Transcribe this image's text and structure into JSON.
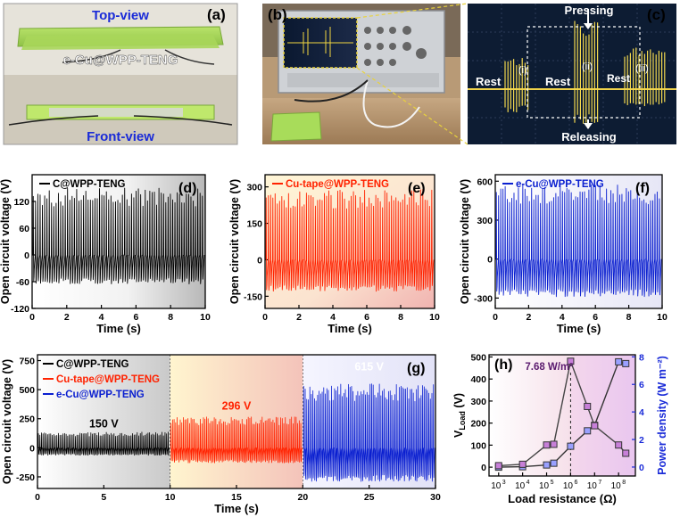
{
  "figure": {
    "panel_a": {
      "letter": "(a)",
      "top_view": "Top-view",
      "device": "e-Cu@WPP-TENG",
      "front_view": "Front-view"
    },
    "panel_b": {
      "letter": "(b)"
    },
    "panel_c": {
      "letter": "(c)",
      "pressing": "Pressing",
      "releasing": "Releasing",
      "rest1": "Rest",
      "rest2": "Rest",
      "rest3": "Rest",
      "i": "(i)",
      "ii": "(ii)",
      "iii": "(iii)"
    }
  },
  "chart_data": [
    {
      "id": "d",
      "panel_label": "(d)",
      "type": "line",
      "title": "",
      "legend": "C@WPP-TENG",
      "color": "#000000",
      "xlabel": "Time (s)",
      "ylabel": "Open circuit voltage (V)",
      "xlim": [
        0,
        10
      ],
      "ylim": [
        -120,
        180
      ],
      "xticks": [
        "0",
        "2",
        "4",
        "6",
        "8",
        "10"
      ],
      "yticks": [
        "-120",
        "-60",
        "0",
        "60",
        "120"
      ],
      "signal": {
        "peak_approx": 150,
        "trough_approx": -65,
        "peaks_count": 75
      }
    },
    {
      "id": "e",
      "panel_label": "(e)",
      "type": "line",
      "title": "",
      "legend": "Cu-tape@WPP-TENG",
      "color": "#ff2200",
      "xlabel": "Time (s)",
      "ylabel": "Open circuit voltage (V)",
      "xlim": [
        0,
        10
      ],
      "ylim": [
        -200,
        350
      ],
      "xticks": [
        "0",
        "2",
        "4",
        "6",
        "8",
        "10"
      ],
      "yticks": [
        "-150",
        "0",
        "150",
        "300"
      ],
      "signal": {
        "peak_approx": 290,
        "trough_approx": -130,
        "peaks_count": 75
      }
    },
    {
      "id": "f",
      "panel_label": "(f)",
      "type": "line",
      "title": "",
      "legend": "e-Cu@WPP-TENG",
      "color": "#0a1fd0",
      "xlabel": "Time (s)",
      "ylabel": "Open circuit voltage (V)",
      "xlim": [
        0,
        10
      ],
      "ylim": [
        -380,
        650
      ],
      "xticks": [
        "0",
        "2",
        "4",
        "6",
        "8",
        "10"
      ],
      "yticks": [
        "-300",
        "0",
        "300",
        "600"
      ],
      "signal": {
        "peak_approx": 580,
        "trough_approx": -290,
        "peaks_count": 75
      }
    },
    {
      "id": "g",
      "panel_label": "(g)",
      "type": "line",
      "title": "",
      "xlabel": "Time (s)",
      "ylabel": "Open circuit voltage (V)",
      "xlim": [
        0,
        30
      ],
      "ylim": [
        -350,
        800
      ],
      "xticks": [
        "0",
        "5",
        "10",
        "15",
        "20",
        "25",
        "30"
      ],
      "yticks": [
        "-250",
        "0",
        "250",
        "500",
        "750"
      ],
      "series": [
        {
          "name": "C@WPP-TENG",
          "color": "#000000",
          "x_range": [
            0,
            10
          ],
          "peak": 150,
          "trough": -65,
          "annotation": "150 V"
        },
        {
          "name": "Cu-tape@WPP-TENG",
          "color": "#ff2200",
          "x_range": [
            10,
            20
          ],
          "peak": 296,
          "trough": -130,
          "annotation": "296 V"
        },
        {
          "name": "e-Cu@WPP-TENG",
          "color": "#0a1fd0",
          "x_range": [
            20,
            30
          ],
          "peak": 615,
          "trough": -290,
          "annotation": "615 V"
        }
      ]
    },
    {
      "id": "h",
      "panel_label": "(h)",
      "type": "line",
      "title": "",
      "xlabel": "Load resistance (Ω)",
      "ylabel": "V_Load (V)",
      "ylabel_main": "V",
      "ylabel_sub": "Load",
      "ylabel_unit": " (V)",
      "y2label": "Power density (W m⁻²)",
      "xscale": "log",
      "xlim_exp": [
        2.6,
        8.7
      ],
      "ylim": [
        -40,
        510
      ],
      "y2lim": [
        -0.65,
        8.15
      ],
      "xticks": [
        {
          "base": "10",
          "exp": "3",
          "v": 3
        },
        {
          "base": "10",
          "exp": "4",
          "v": 4
        },
        {
          "base": "10",
          "exp": "5",
          "v": 5
        },
        {
          "base": "10",
          "exp": "6",
          "v": 6
        },
        {
          "base": "10",
          "exp": "7",
          "v": 7
        },
        {
          "base": "10",
          "exp": "8",
          "v": 8
        }
      ],
      "yticks": [
        "0",
        "100",
        "200",
        "300",
        "400",
        "500"
      ],
      "y2ticks": [
        "0",
        "2",
        "4",
        "6",
        "8"
      ],
      "annotation": "7.68 W/m²",
      "series": [
        {
          "name": "V_Load",
          "color": "#333333",
          "axis": "left",
          "x_exp": [
            3,
            4,
            5,
            5.3,
            6,
            6.7,
            7,
            8,
            8.3
          ],
          "y": [
            0,
            2,
            10,
            18,
            95,
            165,
            190,
            478,
            470
          ]
        },
        {
          "name": "Power density",
          "color": "#444444",
          "axis": "right",
          "x_exp": [
            3,
            4,
            5,
            5.3,
            6,
            6.7,
            7,
            8,
            8.3
          ],
          "y": [
            0.1,
            0.2,
            1.6,
            1.65,
            7.68,
            4.4,
            3.0,
            1.6,
            1.0
          ]
        }
      ]
    }
  ]
}
